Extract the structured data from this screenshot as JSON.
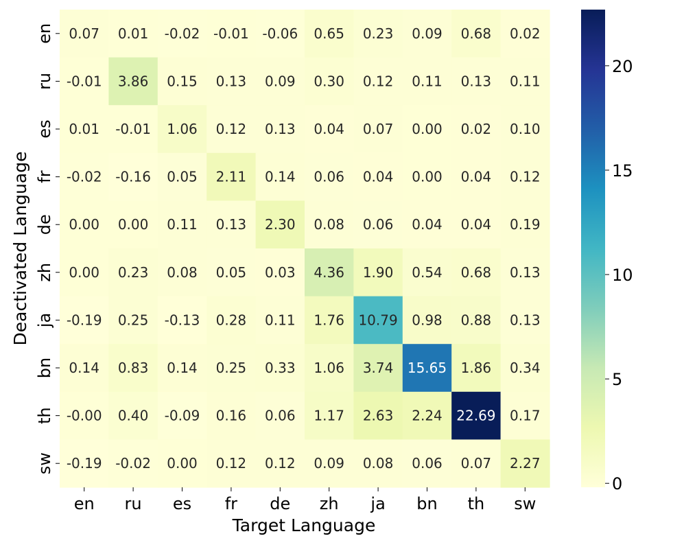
{
  "chart_data": {
    "type": "heatmap",
    "xlabel": "Target Language",
    "ylabel": "Deactivated Language",
    "x_categories": [
      "en",
      "ru",
      "es",
      "fr",
      "de",
      "zh",
      "ja",
      "bn",
      "th",
      "sw"
    ],
    "y_categories": [
      "en",
      "ru",
      "es",
      "fr",
      "de",
      "zh",
      "ja",
      "bn",
      "th",
      "sw"
    ],
    "values": [
      [
        0.07,
        0.01,
        -0.02,
        -0.01,
        -0.06,
        0.65,
        0.23,
        0.09,
        0.68,
        0.02
      ],
      [
        -0.01,
        3.86,
        0.15,
        0.13,
        0.09,
        0.3,
        0.12,
        0.11,
        0.13,
        0.11
      ],
      [
        0.01,
        -0.01,
        1.06,
        0.12,
        0.13,
        0.04,
        0.07,
        0.0,
        0.02,
        0.1
      ],
      [
        -0.02,
        -0.16,
        0.05,
        2.11,
        0.14,
        0.06,
        0.04,
        0.0,
        0.04,
        0.12
      ],
      [
        0.0,
        0.0,
        0.11,
        0.13,
        2.3,
        0.08,
        0.06,
        0.04,
        0.04,
        0.19
      ],
      [
        0.0,
        0.23,
        0.08,
        0.05,
        0.03,
        4.36,
        1.9,
        0.54,
        0.68,
        0.13
      ],
      [
        -0.19,
        0.25,
        -0.13,
        0.28,
        0.11,
        1.76,
        10.79,
        0.98,
        0.88,
        0.13
      ],
      [
        0.14,
        0.83,
        0.14,
        0.25,
        0.33,
        1.06,
        3.74,
        15.65,
        1.86,
        0.34
      ],
      [
        -0.0,
        0.4,
        -0.09,
        0.16,
        0.06,
        1.17,
        2.63,
        2.24,
        22.69,
        0.17
      ],
      [
        -0.19,
        -0.02,
        0.0,
        0.12,
        0.12,
        0.09,
        0.08,
        0.06,
        0.07,
        2.27
      ]
    ],
    "value_labels": [
      [
        "0.07",
        "0.01",
        "-0.02",
        "-0.01",
        "-0.06",
        "0.65",
        "0.23",
        "0.09",
        "0.68",
        "0.02"
      ],
      [
        "-0.01",
        "3.86",
        "0.15",
        "0.13",
        "0.09",
        "0.30",
        "0.12",
        "0.11",
        "0.13",
        "0.11"
      ],
      [
        "0.01",
        "-0.01",
        "1.06",
        "0.12",
        "0.13",
        "0.04",
        "0.07",
        "0.00",
        "0.02",
        "0.10"
      ],
      [
        "-0.02",
        "-0.16",
        "0.05",
        "2.11",
        "0.14",
        "0.06",
        "0.04",
        "0.00",
        "0.04",
        "0.12"
      ],
      [
        "0.00",
        "0.00",
        "0.11",
        "0.13",
        "2.30",
        "0.08",
        "0.06",
        "0.04",
        "0.04",
        "0.19"
      ],
      [
        "0.00",
        "0.23",
        "0.08",
        "0.05",
        "0.03",
        "4.36",
        "1.90",
        "0.54",
        "0.68",
        "0.13"
      ],
      [
        "-0.19",
        "0.25",
        "-0.13",
        "0.28",
        "0.11",
        "1.76",
        "10.79",
        "0.98",
        "0.88",
        "0.13"
      ],
      [
        "0.14",
        "0.83",
        "0.14",
        "0.25",
        "0.33",
        "1.06",
        "3.74",
        "15.65",
        "1.86",
        "0.34"
      ],
      [
        "-0.00",
        "0.40",
        "-0.09",
        "0.16",
        "0.06",
        "1.17",
        "2.63",
        "2.24",
        "22.69",
        "0.17"
      ],
      [
        "-0.19",
        "-0.02",
        "0.00",
        "0.12",
        "0.12",
        "0.09",
        "0.08",
        "0.06",
        "0.07",
        "2.27"
      ]
    ],
    "colormap": "YlGnBu",
    "colorbar": {
      "range": [
        -0.19,
        22.69
      ],
      "ticks": [
        0,
        5,
        10,
        15,
        20
      ],
      "tick_labels": [
        "0",
        "5",
        "10",
        "15",
        "20"
      ]
    },
    "annotation_colors": {
      "light_cell_text": "#262626",
      "dark_cell_text": "#ffffff"
    }
  }
}
